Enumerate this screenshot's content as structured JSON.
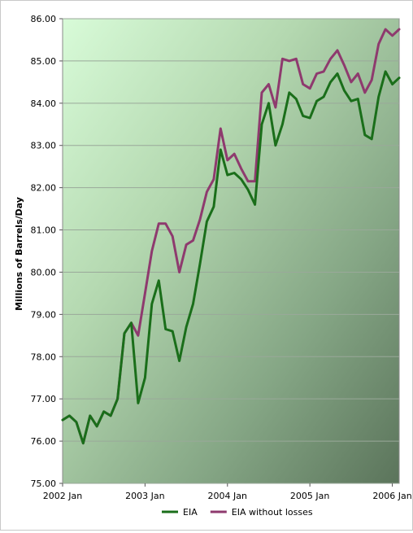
{
  "chart_data": {
    "type": "line",
    "title": "",
    "ylabel": "Millions of Barrels/Day",
    "xlabel": "",
    "ylim": [
      75.0,
      86.0
    ],
    "yticks": [
      "75.00",
      "76.00",
      "77.00",
      "78.00",
      "79.00",
      "80.00",
      "81.00",
      "82.00",
      "83.00",
      "84.00",
      "85.00",
      "86.00"
    ],
    "xlim": [
      0,
      49
    ],
    "xtick_positions": [
      0,
      12,
      24,
      36,
      48
    ],
    "xticks": [
      "2002 Jan",
      "2003 Jan",
      "2004 Jan",
      "2005 Jan",
      "2006 Jan"
    ],
    "grid": "horizontal",
    "legend_position": "bottom",
    "series": [
      {
        "name": "EIA",
        "color": "#1a6e1a",
        "values": [
          76.5,
          76.6,
          76.45,
          75.95,
          76.6,
          76.35,
          76.7,
          76.6,
          77.0,
          78.55,
          78.8,
          76.9,
          77.5,
          79.25,
          79.8,
          78.65,
          78.6,
          77.9,
          78.7,
          79.25,
          80.2,
          81.2,
          81.55,
          82.9,
          82.3,
          82.35,
          82.2,
          81.95,
          81.6,
          83.5,
          84.0,
          83.0,
          83.5,
          84.25,
          84.1,
          83.7,
          83.65,
          84.05,
          84.15,
          84.5,
          84.7,
          84.3,
          84.05,
          84.1,
          83.25,
          83.15,
          84.15,
          84.75,
          84.45,
          84.6
        ]
      },
      {
        "name": "EIA without losses",
        "color": "#8e3a6e",
        "values": [
          76.5,
          76.6,
          76.45,
          75.95,
          76.6,
          76.35,
          76.7,
          76.6,
          77.0,
          78.55,
          78.8,
          78.5,
          79.5,
          80.5,
          81.15,
          81.15,
          80.85,
          80.0,
          80.65,
          80.75,
          81.25,
          81.9,
          82.2,
          83.4,
          82.65,
          82.8,
          82.45,
          82.15,
          82.15,
          84.25,
          84.45,
          83.9,
          85.05,
          85.0,
          85.05,
          84.45,
          84.35,
          84.7,
          84.75,
          85.05,
          85.25,
          84.9,
          84.5,
          84.7,
          84.25,
          84.55,
          85.4,
          85.75,
          85.6,
          85.75
        ]
      }
    ]
  }
}
